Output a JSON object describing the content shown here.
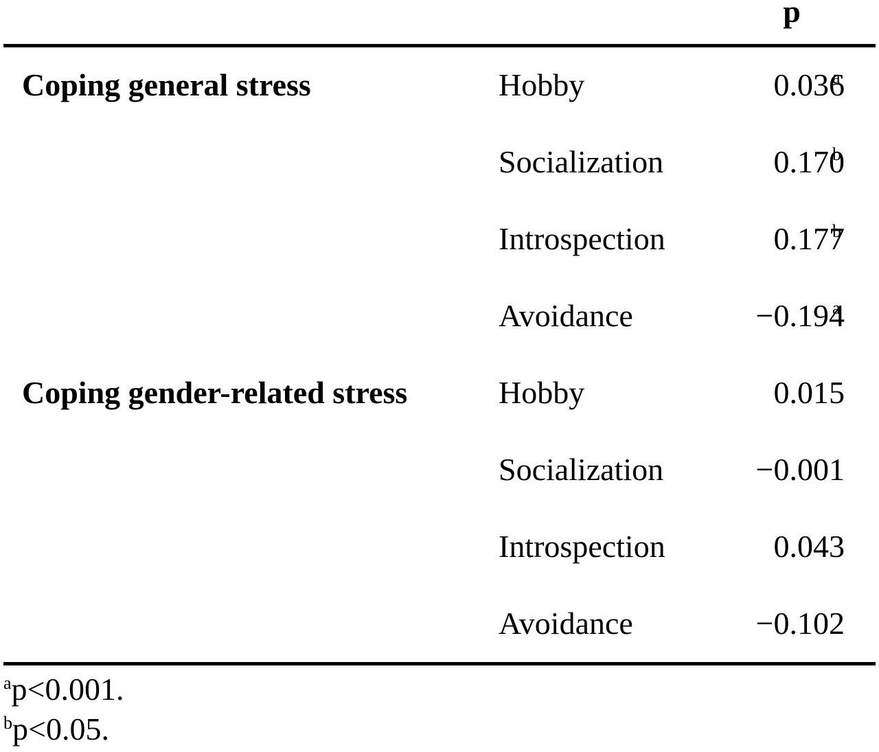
{
  "table": {
    "header": {
      "p": "p"
    },
    "rows": [
      {
        "group": "Coping general stress",
        "strategy": "Hobby",
        "value": "0.036",
        "sup": "a"
      },
      {
        "group": "",
        "strategy": "Socialization",
        "value": "0.170",
        "sup": "b"
      },
      {
        "group": "",
        "strategy": "Introspection",
        "value": "0.177",
        "sup": "b"
      },
      {
        "group": "",
        "strategy": "Avoidance",
        "value": "−0.194",
        "sup": "a"
      },
      {
        "group": "Coping gender-related stress",
        "strategy": "Hobby",
        "value": "0.015",
        "sup": ""
      },
      {
        "group": "",
        "strategy": "Socialization",
        "value": "−0.001",
        "sup": ""
      },
      {
        "group": "",
        "strategy": "Introspection",
        "value": "0.043",
        "sup": ""
      },
      {
        "group": "",
        "strategy": "Avoidance",
        "value": "−0.102",
        "sup": ""
      }
    ]
  },
  "footnotes": [
    {
      "mark": "a",
      "text": "p<0.001."
    },
    {
      "mark": "b",
      "text": "p<0.05."
    }
  ]
}
